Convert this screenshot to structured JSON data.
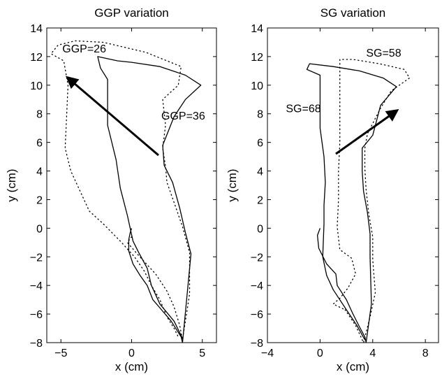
{
  "chart_data": [
    {
      "type": "line",
      "title": "GGP variation",
      "xlabel": "x (cm)",
      "ylabel": "y (cm)",
      "xlim": [
        -6,
        6
      ],
      "ylim": [
        -8,
        14
      ],
      "xticks": [
        -5,
        0,
        5
      ],
      "yticks": [
        -8,
        -6,
        -4,
        -2,
        0,
        2,
        4,
        6,
        8,
        10,
        12,
        14
      ],
      "grid": false,
      "series": [
        {
          "style": "solid",
          "points": [
            [
              0,
              0
            ],
            [
              -0.1,
              -0.3
            ],
            [
              -0.2,
              -0.8
            ],
            [
              -0.2,
              -1.6
            ],
            [
              0.1,
              -2.5
            ],
            [
              0.6,
              -3.3
            ],
            [
              1.1,
              -4.0
            ],
            [
              1.5,
              -5.0
            ],
            [
              2.2,
              -5.8
            ],
            [
              2.8,
              -6.5
            ],
            [
              3.5,
              -7.6
            ],
            [
              3.6,
              -8.0
            ],
            [
              4.2,
              -1.8
            ],
            [
              3.8,
              -0.3
            ],
            [
              3.4,
              1.4
            ],
            [
              2.9,
              3.2
            ],
            [
              2.3,
              4.4
            ],
            [
              2.2,
              5.8
            ],
            [
              3.0,
              7.8
            ],
            [
              3.8,
              9.0
            ],
            [
              4.9,
              10.0
            ],
            [
              3.8,
              10.7
            ],
            [
              2.0,
              11.3
            ],
            [
              0.0,
              11.6
            ],
            [
              -1.0,
              11.7
            ],
            [
              -2.4,
              12.0
            ],
            [
              -2.2,
              11.2
            ],
            [
              -1.7,
              10.4
            ],
            [
              -1.7,
              7.2
            ],
            [
              -1.1,
              4.8
            ],
            [
              -0.8,
              2.8
            ],
            [
              -0.3,
              0.9
            ],
            [
              0.1,
              -0.9
            ],
            [
              0.5,
              -1.7
            ],
            [
              1.1,
              -2.8
            ],
            [
              1.4,
              -4.0
            ],
            [
              2.0,
              -5.3
            ],
            [
              3.0,
              -6.5
            ],
            [
              3.6,
              -7.7
            ]
          ]
        },
        {
          "style": "dotted",
          "points": [
            [
              0,
              -0.6
            ],
            [
              -0.3,
              -1.0
            ],
            [
              0.4,
              -1.8
            ],
            [
              1.7,
              -3.2
            ],
            [
              2.5,
              -4.4
            ],
            [
              3.0,
              -5.5
            ],
            [
              3.4,
              -6.8
            ],
            [
              3.6,
              -7.8
            ],
            [
              4.1,
              -4.6
            ],
            [
              4.1,
              -1.7
            ],
            [
              3.6,
              0.1
            ],
            [
              3.0,
              1.8
            ],
            [
              2.5,
              3.2
            ],
            [
              2.4,
              4.3
            ],
            [
              2.2,
              5.6
            ],
            [
              2.4,
              7.2
            ],
            [
              2.2,
              9.0
            ],
            [
              3.3,
              10.0
            ],
            [
              3.5,
              11.3
            ],
            [
              1.0,
              12.3
            ],
            [
              -2.0,
              13.0
            ],
            [
              -4.0,
              13.1
            ],
            [
              -5.2,
              12.8
            ],
            [
              -5.7,
              12.2
            ],
            [
              -4.8,
              11.7
            ],
            [
              -4.5,
              10.0
            ],
            [
              -4.6,
              7.8
            ],
            [
              -4.7,
              5.6
            ],
            [
              -4.3,
              4.0
            ],
            [
              -3.6,
              2.5
            ],
            [
              -3.0,
              1.2
            ],
            [
              -2.0,
              0.3
            ],
            [
              -0.8,
              -0.9
            ],
            [
              0.2,
              -2.0
            ],
            [
              0.9,
              -3.0
            ],
            [
              1.4,
              -4.0
            ],
            [
              2.0,
              -5.0
            ],
            [
              2.5,
              -6.2
            ],
            [
              3.0,
              -7.0
            ],
            [
              3.3,
              -7.6
            ]
          ]
        }
      ],
      "annotations": [
        {
          "text": "GGP=26",
          "x": -4.9,
          "y": 12.3
        },
        {
          "text": "GGP=36",
          "x": 2.1,
          "y": 7.6
        }
      ],
      "arrow": {
        "from": [
          1.9,
          5.1
        ],
        "to": [
          -4.5,
          10.5
        ]
      }
    },
    {
      "type": "line",
      "title": "SG variation",
      "xlabel": "x (cm)",
      "ylabel": "y (cm)",
      "xlim": [
        -4,
        9
      ],
      "ylim": [
        -8,
        14
      ],
      "xticks": [
        -4,
        0,
        4,
        8
      ],
      "yticks": [
        -8,
        -6,
        -4,
        -2,
        0,
        2,
        4,
        6,
        8,
        10,
        12,
        14
      ],
      "grid": false,
      "series": [
        {
          "style": "solid",
          "points": [
            [
              0,
              0
            ],
            [
              -0.2,
              -0.5
            ],
            [
              -0.1,
              -1.4
            ],
            [
              0.5,
              -2.5
            ],
            [
              1.2,
              -3.2
            ],
            [
              1.3,
              -4.0
            ],
            [
              2.0,
              -5.0
            ],
            [
              2.5,
              -6.0
            ],
            [
              3.0,
              -6.9
            ],
            [
              3.4,
              -7.6
            ],
            [
              3.5,
              -8.0
            ],
            [
              3.9,
              -5.3
            ],
            [
              3.8,
              -2.0
            ],
            [
              3.8,
              -0.4
            ],
            [
              3.6,
              1.1
            ],
            [
              3.3,
              2.6
            ],
            [
              3.2,
              4.0
            ],
            [
              3.2,
              5.6
            ],
            [
              4.0,
              6.5
            ],
            [
              4.6,
              8.6
            ],
            [
              5.8,
              9.9
            ],
            [
              4.8,
              10.5
            ],
            [
              3.0,
              11.0
            ],
            [
              1.0,
              11.3
            ],
            [
              -0.8,
              11.5
            ],
            [
              -1.0,
              11.1
            ],
            [
              0.0,
              10.7
            ],
            [
              0.0,
              9.0
            ],
            [
              0.0,
              7.0
            ],
            [
              0.3,
              5.0
            ],
            [
              0.4,
              3.2
            ],
            [
              0.3,
              1.6
            ],
            [
              0.3,
              0.3
            ],
            [
              0.2,
              -2.0
            ],
            [
              0.5,
              -3.3
            ],
            [
              1.0,
              -4.3
            ],
            [
              2.0,
              -5.7
            ],
            [
              2.8,
              -6.8
            ],
            [
              3.4,
              -7.8
            ]
          ]
        },
        {
          "style": "dotted",
          "points": [
            [
              1.9,
              -5.7
            ],
            [
              2.7,
              -6.8
            ],
            [
              3.1,
              -7.6
            ],
            [
              3.3,
              -8.0
            ],
            [
              3.8,
              -6.2
            ],
            [
              4.2,
              -4.5
            ],
            [
              4.0,
              -2.2
            ],
            [
              4.0,
              -0.6
            ],
            [
              3.7,
              1.0
            ],
            [
              3.5,
              2.7
            ],
            [
              3.4,
              4.2
            ],
            [
              3.4,
              5.6
            ],
            [
              3.6,
              6.6
            ],
            [
              4.6,
              8.4
            ],
            [
              5.4,
              9.6
            ],
            [
              6.8,
              10.5
            ],
            [
              6.4,
              11.1
            ],
            [
              4.5,
              11.5
            ],
            [
              2.5,
              11.8
            ],
            [
              1.5,
              11.8
            ],
            [
              1.5,
              10.2
            ],
            [
              1.5,
              8.0
            ],
            [
              1.5,
              6.0
            ],
            [
              1.4,
              4.0
            ],
            [
              1.4,
              2.0
            ],
            [
              1.3,
              0.1
            ],
            [
              1.5,
              -1.5
            ],
            [
              2.4,
              -2.1
            ],
            [
              2.7,
              -3.2
            ],
            [
              2.1,
              -4.2
            ],
            [
              1.5,
              -4.9
            ],
            [
              1.0,
              -5.3
            ],
            [
              1.9,
              -5.7
            ]
          ]
        }
      ],
      "annotations": [
        {
          "text": "SG=58",
          "x": 3.5,
          "y": 12.0
        },
        {
          "text": "SG=68",
          "x": -2.6,
          "y": 8.1
        }
      ],
      "arrow": {
        "from": [
          1.2,
          5.2
        ],
        "to": [
          5.8,
          8.2
        ]
      }
    }
  ]
}
